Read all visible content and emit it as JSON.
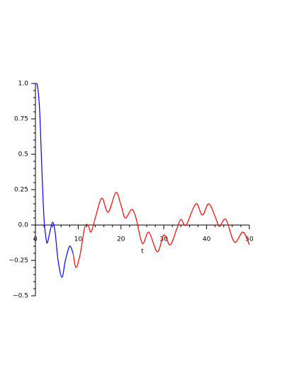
{
  "chart_data": {
    "type": "line",
    "xlabel": "t",
    "xlim": [
      0,
      50
    ],
    "ylim": [
      -0.5,
      1
    ],
    "xticks": [
      0,
      10,
      20,
      30,
      40,
      50
    ],
    "yticks": [
      {
        "value": -0.5,
        "label": "−0.5"
      },
      {
        "value": -0.25,
        "label": "−0.25"
      },
      {
        "value": 0,
        "label": "0.0"
      },
      0.25,
      0.5,
      0.75,
      {
        "value": 1,
        "label": "1.0"
      }
    ],
    "series": [
      {
        "color": "#0000ff",
        "x": [
          0,
          0.5,
          1,
          1.5,
          2,
          2.5,
          2.8,
          3.3,
          4,
          4.6,
          5.3,
          6.2,
          7,
          8,
          8.8
        ],
        "values": [
          1,
          0.98,
          0.8,
          0.4,
          0.05,
          -0.1,
          -0.125,
          -0.06,
          0.02,
          -0.05,
          -0.25,
          -0.37,
          -0.25,
          -0.15,
          -0.2
        ]
      },
      {
        "color": "#ff0000",
        "x": [
          8.8,
          9.5,
          10.5,
          11.5,
          12.3,
          13,
          14,
          15.5,
          17,
          18.8,
          20,
          21,
          22.5,
          23.5,
          25,
          26.5,
          28.5,
          30,
          31.5,
          33,
          34,
          35.2,
          37.5,
          39,
          40.5,
          42,
          43,
          44.5,
          46.5,
          48.5,
          50
        ],
        "values": [
          -0.2,
          -0.3,
          -0.2,
          -0.02,
          0,
          -0.05,
          0.05,
          0.19,
          0.09,
          0.23,
          0.14,
          0.05,
          0.11,
          0.05,
          -0.13,
          -0.05,
          -0.19,
          -0.07,
          -0.14,
          -0.03,
          0.04,
          0,
          0.15,
          0.07,
          0.15,
          0.06,
          -0.01,
          0.04,
          -0.12,
          -0.05,
          -0.14
        ]
      }
    ]
  }
}
